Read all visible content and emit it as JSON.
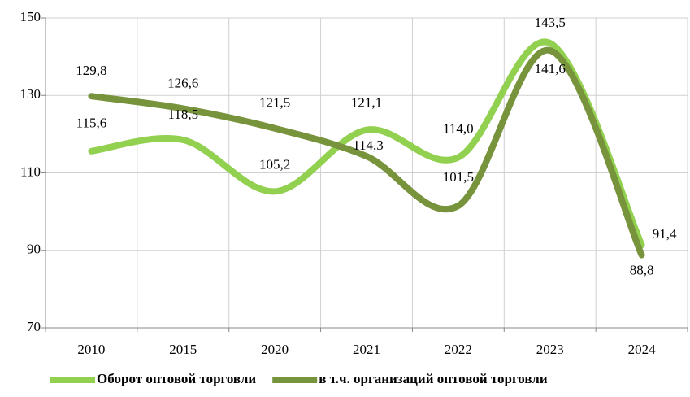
{
  "chart_data": {
    "type": "line",
    "categories": [
      "2010",
      "2015",
      "2020",
      "2021",
      "2022",
      "2023",
      "2024"
    ],
    "series": [
      {
        "name": "Оборот оптовой торговли",
        "color": "#92d050",
        "values": [
          115.6,
          118.5,
          105.2,
          121.1,
          114.0,
          143.5,
          91.4
        ],
        "value_labels": [
          "115,6",
          "118,5",
          "105,2",
          "121,1",
          "114,0",
          "143,5",
          "91,4"
        ]
      },
      {
        "name": "в т.ч. организаций оптовой торговли",
        "color": "#77933c",
        "values": [
          129.8,
          126.6,
          121.5,
          114.3,
          101.5,
          141.6,
          88.8
        ],
        "value_labels": [
          "129,8",
          "126,6",
          "121,5",
          "114,3",
          "101,5",
          "141,6",
          "88,8"
        ]
      }
    ],
    "ylim": [
      70,
      150
    ],
    "yticks": [
      70,
      90,
      110,
      130,
      150
    ],
    "grid": true,
    "smooth": true,
    "legend": "bottom"
  }
}
